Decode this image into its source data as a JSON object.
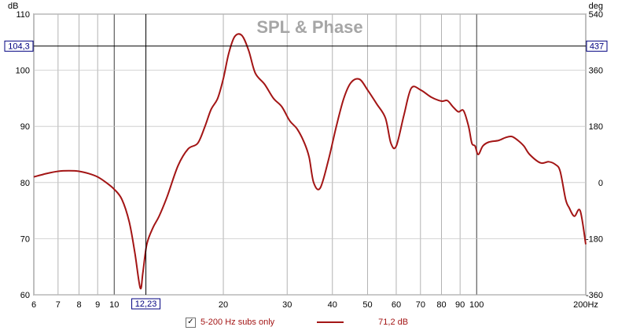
{
  "chart_data": {
    "type": "line",
    "title": "SPL & Phase",
    "x_unit_label": "Hz",
    "y_left_unit": "dB",
    "y_right_unit": "deg",
    "x_scale": "log",
    "xlim": [
      6,
      200
    ],
    "ylim": [
      60,
      110
    ],
    "y_right_lim": [
      -360,
      540
    ],
    "grid": true,
    "x_ticks": [
      6,
      7,
      8,
      9,
      10,
      20,
      30,
      40,
      50,
      60,
      70,
      80,
      90,
      100,
      200
    ],
    "x_tick_labels": [
      "6",
      "7",
      "8",
      "9",
      "10",
      "20",
      "30",
      "40",
      "50",
      "60",
      "70",
      "80",
      "90",
      "100",
      "200Hz"
    ],
    "x_minor_gridlines": [
      6,
      7,
      8,
      9,
      10,
      20,
      30,
      40,
      50,
      60,
      70,
      80,
      90,
      100,
      200
    ],
    "y_left_ticks": [
      60,
      70,
      80,
      90,
      100,
      110
    ],
    "y_right_ticks": [
      -360,
      -180,
      0,
      180,
      360,
      540
    ],
    "cursor": {
      "x_label": "12,23",
      "y_label": "104,3",
      "y_right_label": "437",
      "x": 12.23,
      "y": 104.3
    },
    "series": [
      {
        "name": "5-200 Hz subs only",
        "color": "#a31515",
        "x": [
          6,
          6.5,
          7,
          7.5,
          8,
          8.5,
          9,
          9.5,
          10,
          10.5,
          11,
          11.4,
          11.8,
          12.0,
          12.3,
          12.8,
          13.3,
          14,
          15,
          16,
          17,
          17.8,
          18.5,
          19.3,
          20,
          20.7,
          21.5,
          22.5,
          23.5,
          24.5,
          26,
          27.5,
          29,
          30.5,
          32,
          33.5,
          34.5,
          35.5,
          37,
          39,
          41,
          43,
          45,
          47.5,
          50,
          53,
          56,
          58,
          60,
          63,
          66,
          70,
          75,
          80,
          83,
          86,
          89,
          92,
          95,
          97,
          99,
          101,
          104,
          108,
          115,
          120,
          125,
          130,
          135,
          140,
          150,
          158,
          165,
          170,
          176,
          180,
          186,
          193,
          200
        ],
        "values": [
          81.0,
          81.6,
          82.0,
          82.1,
          82.0,
          81.6,
          81.0,
          80.0,
          78.8,
          77.0,
          73.0,
          67.5,
          61.2,
          64.0,
          69.0,
          72.0,
          74.0,
          77.5,
          83.0,
          86.0,
          87.0,
          90.0,
          93.0,
          95.0,
          98.5,
          103.0,
          106.0,
          106.2,
          103.5,
          99.5,
          97.5,
          95.0,
          93.5,
          91.0,
          89.5,
          87.0,
          84.5,
          80.0,
          79.0,
          84.0,
          90.0,
          95.0,
          97.8,
          98.4,
          96.5,
          94.0,
          91.5,
          87.0,
          86.5,
          92.0,
          96.8,
          96.5,
          95.2,
          94.5,
          94.6,
          93.5,
          92.6,
          92.8,
          90.0,
          87.0,
          86.5,
          85.0,
          86.5,
          87.2,
          87.5,
          88.0,
          88.2,
          87.5,
          86.5,
          85.0,
          83.5,
          83.7,
          83.2,
          82.0,
          77.0,
          75.5,
          74.0,
          75.0,
          69.0
        ]
      }
    ],
    "data_label": "71,2 dB"
  },
  "legend": {
    "checkbox_label": "5-200 Hz subs only",
    "checkbox_checked": true,
    "checkbox_glyph": "✓",
    "value_text": "71,2 dB"
  }
}
